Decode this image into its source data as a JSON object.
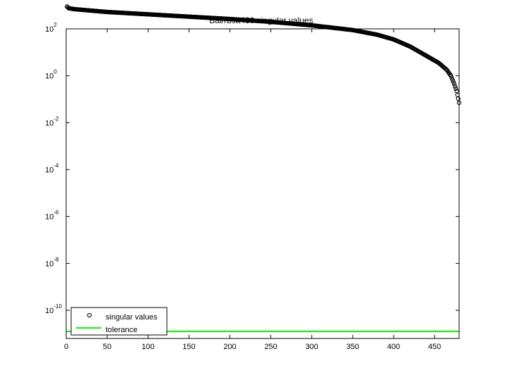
{
  "chart_data": {
    "type": "scatter",
    "title": "Bai/rbsa480 singular values",
    "xlabel": "",
    "ylabel": "",
    "xlim": [
      0,
      480
    ],
    "ylim_log10": [
      -11.2,
      2.0
    ],
    "yscale": "log",
    "grid": false,
    "legend_position": "bottom-left",
    "x_ticks": [
      "0",
      "50",
      "100",
      "150",
      "200",
      "250",
      "300",
      "350",
      "400",
      "450"
    ],
    "y_ticks": [
      {
        "base": "10",
        "exp": "2"
      },
      {
        "base": "10",
        "exp": "0"
      },
      {
        "base": "10",
        "exp": "-2"
      },
      {
        "base": "10",
        "exp": "-4"
      },
      {
        "base": "10",
        "exp": "-6"
      },
      {
        "base": "10",
        "exp": "-8"
      },
      {
        "base": "10",
        "exp": "-10"
      }
    ],
    "series": [
      {
        "name": "singular values",
        "marker": "circle",
        "color": "#000000",
        "count": 480,
        "profile_log10": [
          [
            1,
            2.95
          ],
          [
            3,
            2.88
          ],
          [
            10,
            2.84
          ],
          [
            50,
            2.72
          ],
          [
            100,
            2.62
          ],
          [
            150,
            2.52
          ],
          [
            200,
            2.42
          ],
          [
            250,
            2.3
          ],
          [
            300,
            2.15
          ],
          [
            350,
            1.95
          ],
          [
            380,
            1.75
          ],
          [
            400,
            1.55
          ],
          [
            420,
            1.25
          ],
          [
            440,
            0.85
          ],
          [
            455,
            0.55
          ],
          [
            465,
            0.25
          ],
          [
            470,
            0.0
          ],
          [
            474,
            -0.35
          ],
          [
            477,
            -0.65
          ],
          [
            480,
            -1.15
          ]
        ]
      },
      {
        "name": "tolerance",
        "color": "#00ff00",
        "y_log10": -10.9
      }
    ]
  }
}
